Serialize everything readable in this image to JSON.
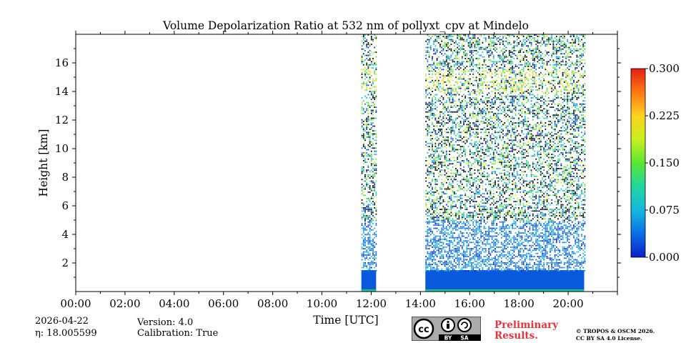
{
  "chart_data": {
    "type": "heatmap",
    "title": "Volume Depolarization Ratio at 532 nm of pollyxt_cpv at Mindelo",
    "xlabel": "Time [UTC]",
    "ylabel": "Height [km]",
    "xlim": [
      0,
      22
    ],
    "ylim": [
      0,
      18
    ],
    "x_ticks": [
      {
        "value": 0,
        "label": "00:00"
      },
      {
        "value": 2,
        "label": "02:00"
      },
      {
        "value": 4,
        "label": "04:00"
      },
      {
        "value": 6,
        "label": "06:00"
      },
      {
        "value": 8,
        "label": "08:00"
      },
      {
        "value": 10,
        "label": "10:00"
      },
      {
        "value": 12,
        "label": "12:00"
      },
      {
        "value": 14,
        "label": "14:00"
      },
      {
        "value": 16,
        "label": "16:00"
      },
      {
        "value": 18,
        "label": "18:00"
      },
      {
        "value": 20,
        "label": "20:00"
      }
    ],
    "y_ticks": [
      {
        "value": 2,
        "label": "2"
      },
      {
        "value": 4,
        "label": "4"
      },
      {
        "value": 6,
        "label": "6"
      },
      {
        "value": 8,
        "label": "8"
      },
      {
        "value": 10,
        "label": "10"
      },
      {
        "value": 12,
        "label": "12"
      },
      {
        "value": 14,
        "label": "14"
      },
      {
        "value": 16,
        "label": "16"
      }
    ],
    "colorbar": {
      "range": [
        0.0,
        0.3
      ],
      "ticks": [
        {
          "value": 0.0,
          "label": "0.000"
        },
        {
          "value": 0.075,
          "label": "0.075"
        },
        {
          "value": 0.15,
          "label": "0.150"
        },
        {
          "value": 0.225,
          "label": "0.225"
        },
        {
          "value": 0.3,
          "label": "0.300"
        }
      ],
      "colormap": [
        "#0a1fc8",
        "#0a6fe8",
        "#14b8dc",
        "#1ed7a0",
        "#5ae632",
        "#c8f01e",
        "#ffd21e",
        "#ff7814",
        "#e61e14"
      ]
    },
    "data_segments": [
      {
        "start": 11.6,
        "end": 12.2,
        "valid_top_km": 18,
        "noise_start_km": 1.5
      },
      {
        "start": 14.2,
        "end": 20.65,
        "valid_top_km": 18,
        "noise_start_km": 1.5
      }
    ],
    "layers": [
      {
        "name": "boundary-layer",
        "bottom_km": 0.0,
        "top_km": 1.5,
        "depol": 0.04
      },
      {
        "name": "elevated-layer",
        "bottom_km": 14.0,
        "top_km": 15.5,
        "depol": 0.17
      }
    ]
  },
  "footer": {
    "date": "2026-04-22",
    "eta": "η: 18.005599",
    "version": "Version: 4.0",
    "calibration": "Calibration: True",
    "preliminary": [
      "Preliminary",
      "Results."
    ],
    "copyright": [
      "© TROPOS & OSCM 2026.",
      "CC BY SA 4.0 License."
    ]
  }
}
